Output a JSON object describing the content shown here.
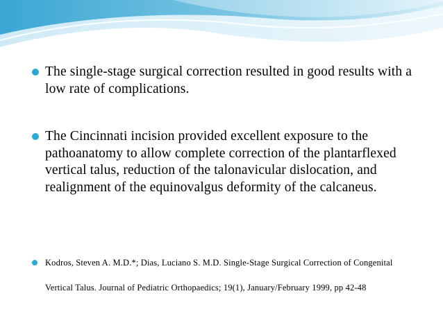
{
  "theme": {
    "bullet_color": "#29a9d6",
    "wave_dark": "#4fb3d9",
    "wave_light": "#bfe3f2"
  },
  "bullets": [
    {
      "text": "The single-stage surgical correction resulted in good results with a low rate of complications."
    },
    {
      "text": "The Cincinnati incision provided excellent exposure to the pathoanatomy to allow complete correction of the plantarflexed vertical talus, reduction of the talonavicular dislocation, and realignment of the equinovalgus deformity of the calcaneus."
    }
  ],
  "reference": {
    "line1": "Kodros, Steven A. M.D.*; Dias, Luciano S. M.D.  Single-Stage Surgical Correction of Congenital",
    "line2": "Vertical Talus.  Journal of Pediatric Orthopaedics; 19(1), January/February 1999, pp 42-48"
  }
}
